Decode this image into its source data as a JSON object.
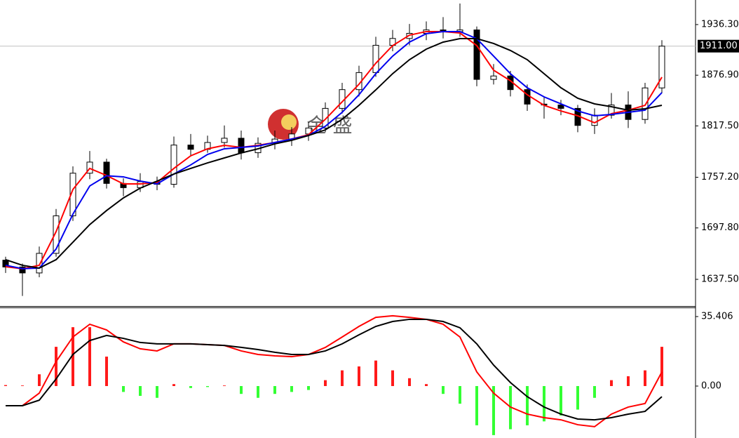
{
  "chart_data": [
    {
      "type": "candlestick",
      "open": [
        1660,
        1652,
        1645,
        1668,
        1712,
        1762,
        1775,
        1750,
        1745,
        1752,
        1749,
        1795,
        1790,
        1798,
        1803,
        1786,
        1797,
        1802,
        1808,
        1815,
        1838,
        1860,
        1880,
        1912,
        1920,
        1926,
        1930,
        1928,
        1930,
        1872,
        1876,
        1860,
        1843,
        1842,
        1838,
        1818,
        1830,
        1842,
        1825,
        1862
      ],
      "high": [
        1664,
        1656,
        1676,
        1720,
        1770,
        1788,
        1779,
        1756,
        1762,
        1758,
        1805,
        1808,
        1806,
        1818,
        1812,
        1804,
        1812,
        1816,
        1822,
        1845,
        1868,
        1888,
        1922,
        1930,
        1937,
        1940,
        1945,
        1961,
        1934,
        1890,
        1882,
        1866,
        1852,
        1848,
        1842,
        1838,
        1856,
        1858,
        1868,
        1918
      ],
      "low": [
        1645,
        1618,
        1640,
        1664,
        1706,
        1755,
        1744,
        1735,
        1740,
        1742,
        1745,
        1782,
        1786,
        1792,
        1778,
        1780,
        1790,
        1794,
        1800,
        1810,
        1832,
        1852,
        1875,
        1905,
        1912,
        1918,
        1920,
        1922,
        1864,
        1866,
        1852,
        1835,
        1826,
        1830,
        1810,
        1808,
        1826,
        1815,
        1820,
        1856
      ],
      "close": [
        1652,
        1645,
        1668,
        1712,
        1762,
        1775,
        1750,
        1745,
        1752,
        1749,
        1795,
        1790,
        1798,
        1803,
        1786,
        1797,
        1802,
        1808,
        1815,
        1838,
        1860,
        1880,
        1912,
        1920,
        1926,
        1930,
        1928,
        1930,
        1872,
        1876,
        1860,
        1843,
        1842,
        1838,
        1818,
        1830,
        1842,
        1825,
        1862,
        1911
      ],
      "up_color": "#ffffff",
      "down_color": "#000000",
      "series": [
        {
          "color": "#ff0000",
          "values": [
            1652.3,
            1649.9,
            1654,
            1693.5,
            1742.9,
            1767.6,
            1759.3,
            1749.4,
            1749.4,
            1751.1,
            1767.6,
            1782.4,
            1790.6,
            1794.7,
            1792.2,
            1794.7,
            1798,
            1802.1,
            1807.1,
            1825.2,
            1845.7,
            1866.3,
            1891,
            1911.6,
            1923.9,
            1928.1,
            1928.1,
            1926.4,
            1911.6,
            1882.8,
            1870.4,
            1854,
            1841.6,
            1835,
            1829.3,
            1821.1,
            1831.8,
            1835.9,
            1841.6,
            1874.6
          ]
        },
        {
          "color": "#0000ee",
          "values": [
            1654,
            1650,
            1650.7,
            1673,
            1714,
            1747,
            1759,
            1757.7,
            1752.7,
            1749.4,
            1761,
            1771.7,
            1784,
            1790.6,
            1792.2,
            1793.9,
            1798,
            1802,
            1806.2,
            1817,
            1833.4,
            1854,
            1878.7,
            1899.3,
            1915.7,
            1925.6,
            1928.1,
            1928.1,
            1919.8,
            1899.3,
            1878.7,
            1862.2,
            1851.5,
            1843.3,
            1835,
            1829.3,
            1830.9,
            1833.4,
            1835.9,
            1856.5
          ]
        },
        {
          "color": "#000000",
          "values": [
            1660.6,
            1654,
            1650.7,
            1660.6,
            1681.1,
            1701.7,
            1718.2,
            1733,
            1744.5,
            1752.7,
            1761,
            1767.6,
            1774.1,
            1779.9,
            1785.7,
            1790.6,
            1796.4,
            1800.5,
            1806.2,
            1812.8,
            1825.2,
            1841.6,
            1859.7,
            1878.7,
            1895.1,
            1907.5,
            1915.7,
            1919.8,
            1919.8,
            1914.1,
            1905.9,
            1895.1,
            1878.7,
            1862.2,
            1849.9,
            1843.3,
            1840,
            1835.9,
            1837.5,
            1841.6
          ]
        }
      ],
      "ylim": [
        1606.2,
        1965.1
      ],
      "yticks": [
        {
          "value": 1936.3,
          "label": "1936.30"
        },
        {
          "value": 1876.9,
          "label": "1876.90"
        },
        {
          "value": 1817.5,
          "label": "1817.50"
        },
        {
          "value": 1757.2,
          "label": "1757.20"
        },
        {
          "value": 1697.8,
          "label": "1697.80"
        },
        {
          "value": 1637.5,
          "label": "1637.50"
        }
      ],
      "last_price": {
        "value": 1911,
        "label": "1911.00"
      },
      "watermark": "金 盛"
    },
    {
      "type": "bar",
      "values": [
        0.5,
        0.3,
        6,
        20,
        30,
        30,
        15,
        -3,
        -5,
        -6,
        1,
        -1,
        -0.5,
        0.3,
        -4,
        -6,
        -4,
        -3,
        -2,
        3,
        8,
        10,
        13,
        8,
        4,
        1,
        -4,
        -9,
        -20,
        -25,
        -22,
        -20,
        -18,
        -15,
        -12,
        -6,
        3,
        5,
        8,
        20
      ],
      "up_color": "#ff1a1a",
      "down_color": "#33ff33",
      "series": [
        {
          "color": "#ff0000",
          "values": [
            -10,
            -10,
            -3.6,
            12.5,
            25,
            31.5,
            28.6,
            22.5,
            19,
            17.9,
            21.5,
            21.5,
            21.1,
            20.7,
            17.9,
            16.1,
            15.4,
            15,
            16.1,
            19.7,
            25,
            30.4,
            35,
            35.8,
            35,
            34,
            31.5,
            25,
            7.2,
            -3.6,
            -10.7,
            -14.3,
            -16.1,
            -17.2,
            -19.7,
            -20.7,
            -14.3,
            -10.7,
            -8.9,
            7.2
          ]
        },
        {
          "color": "#000000",
          "values": [
            -10,
            -10,
            -7.2,
            3.6,
            16.1,
            23.2,
            25.8,
            24.3,
            22.2,
            21.5,
            21.5,
            21.5,
            21.1,
            20.7,
            19.7,
            18.6,
            17.2,
            16.1,
            16.1,
            17.9,
            21.5,
            26.1,
            30.4,
            32.9,
            34,
            34,
            32.9,
            29.7,
            21.5,
            10.7,
            1.8,
            -5.4,
            -10.7,
            -14.3,
            -16.8,
            -17.2,
            -16.1,
            -14.3,
            -12.9,
            -5.4
          ]
        }
      ],
      "ylim": [
        -26.47,
        40.06
      ],
      "yticks": [
        35.406,
        {
          "value": 0,
          "label": "0.00"
        }
      ]
    }
  ]
}
